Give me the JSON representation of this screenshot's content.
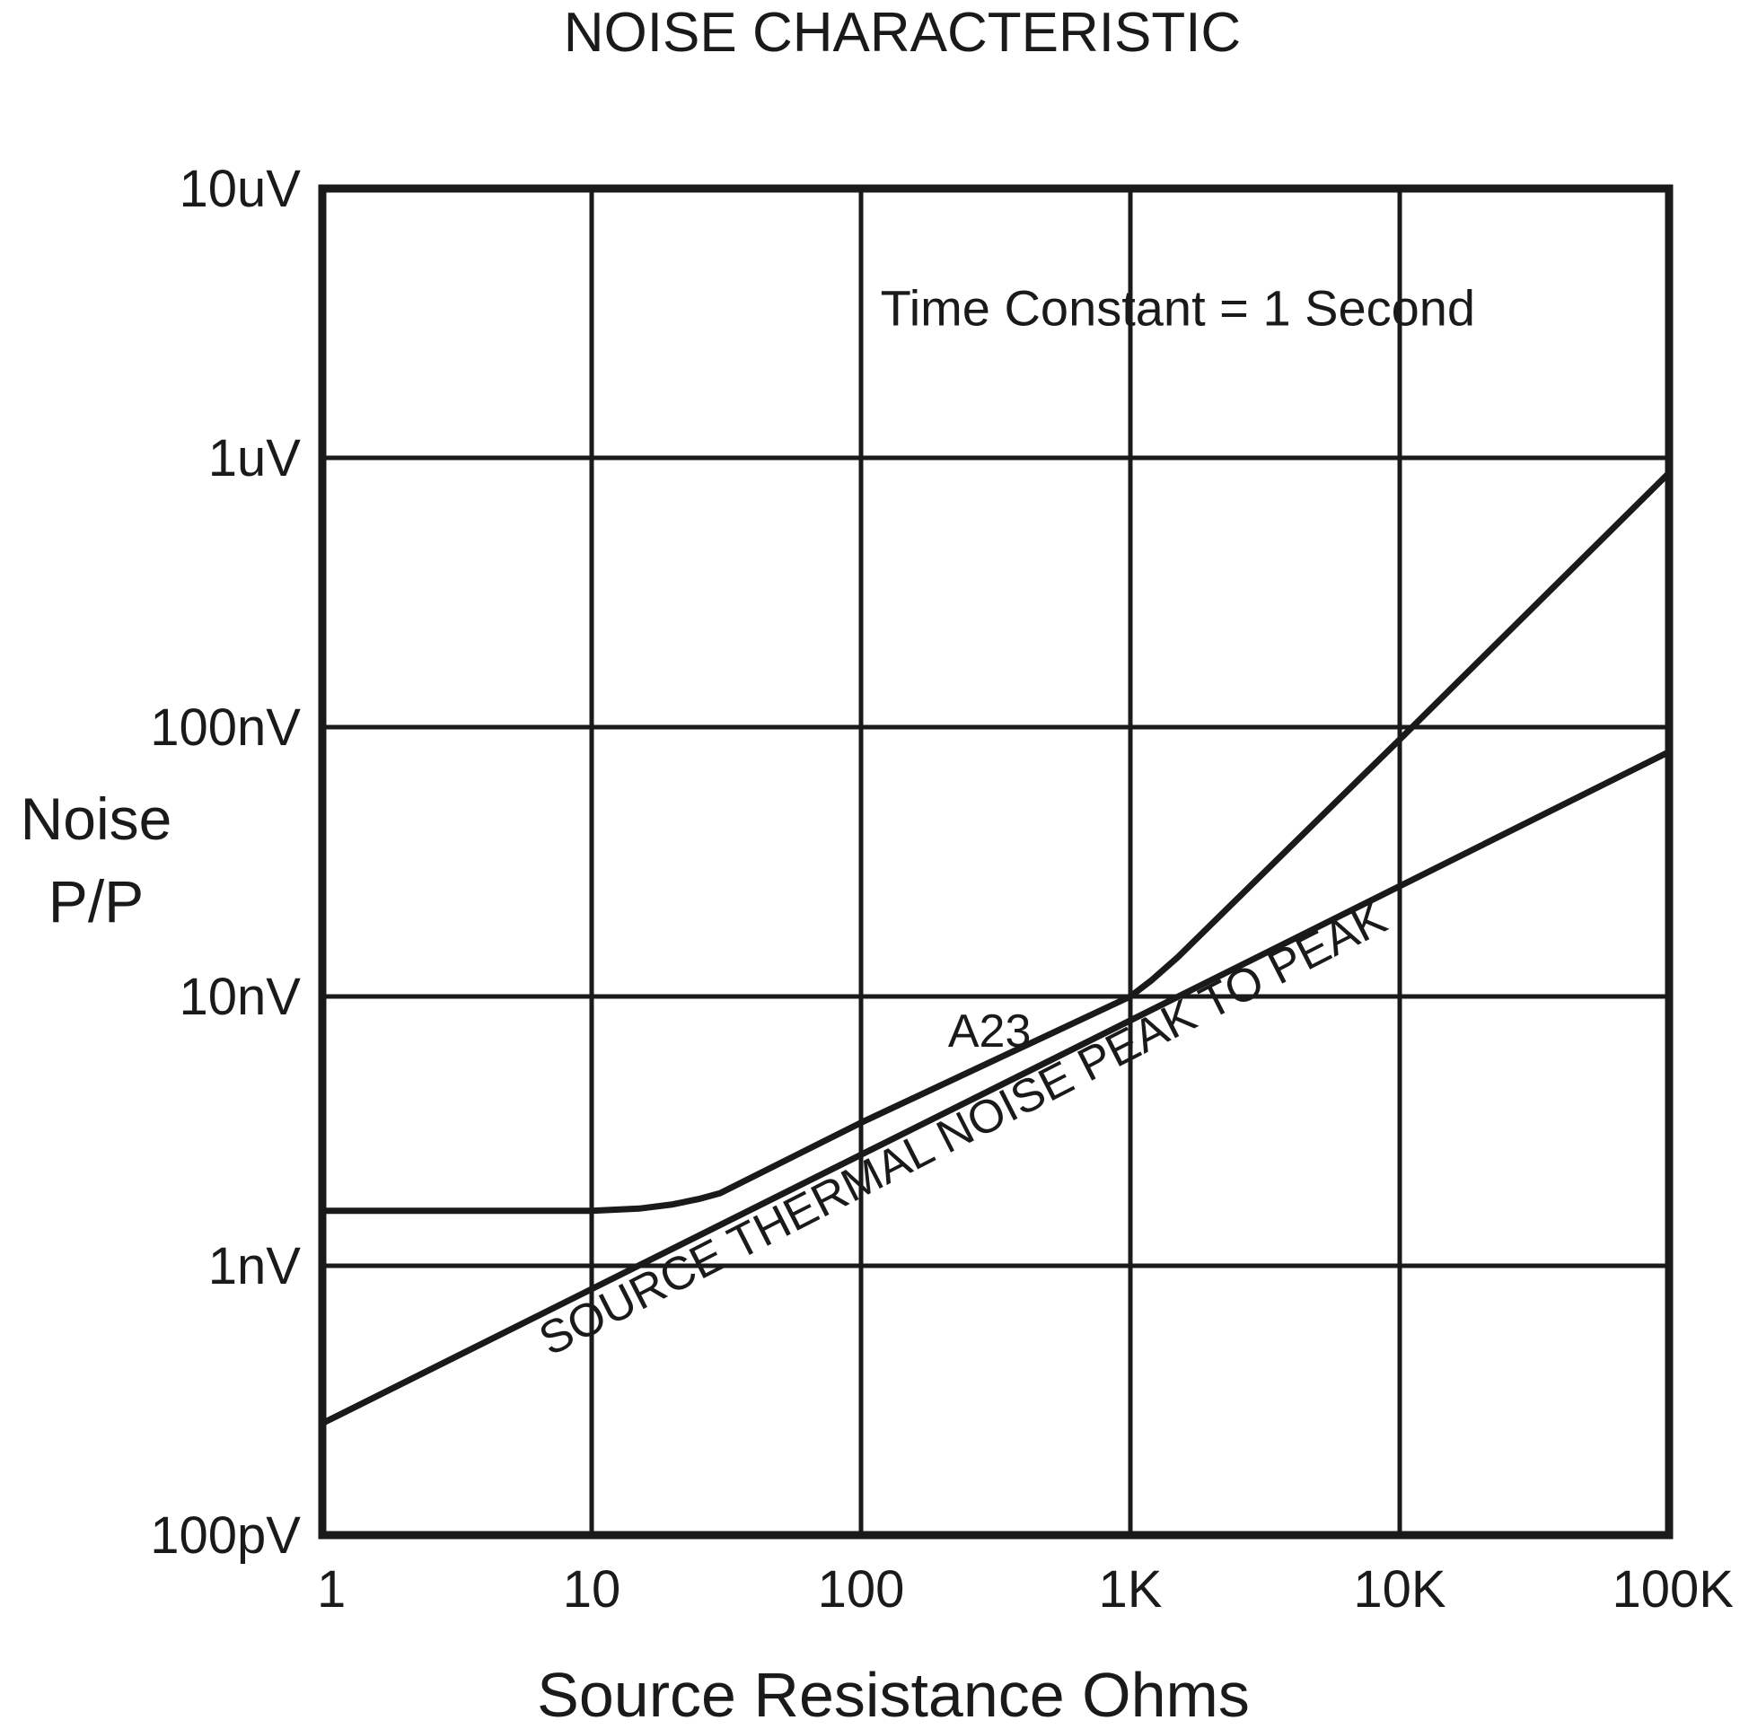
{
  "chart_data": {
    "type": "line",
    "title": "NOISE CHARACTERISTIC",
    "xlabel": "Source Resistance  Ohms",
    "ylabel": [
      "Noise",
      "P/P"
    ],
    "x_scale": "log",
    "y_scale": "log",
    "xlim": [
      1,
      100000
    ],
    "ylim": [
      1e-10,
      1e-05
    ],
    "grid": true,
    "x_ticks": [
      {
        "value": 1,
        "label": "1"
      },
      {
        "value": 10,
        "label": "10"
      },
      {
        "value": 100,
        "label": "100"
      },
      {
        "value": 1000,
        "label": "1K"
      },
      {
        "value": 10000,
        "label": "10K"
      },
      {
        "value": 100000,
        "label": "100K"
      }
    ],
    "y_ticks": [
      {
        "value": 1e-10,
        "label": "100pV"
      },
      {
        "value": 1e-09,
        "label": "1nV"
      },
      {
        "value": 1e-08,
        "label": "10nV"
      },
      {
        "value": 1e-07,
        "label": "100nV"
      },
      {
        "value": 1e-06,
        "label": "1uV"
      },
      {
        "value": 1e-05,
        "label": "10uV"
      }
    ],
    "annotations": [
      {
        "text": "Time Constant = 1 Second",
        "x": 1500,
        "y": 3.1e-06,
        "angle": 0,
        "align": "middle"
      },
      {
        "text": "A23",
        "x": 300,
        "y": 6.5e-09,
        "angle": 0,
        "align": "middle"
      },
      {
        "text": "SOURCE THERMAL NOISE   PEAK TO PEAK",
        "x": 7,
        "y": 4.6e-10,
        "angle": -27,
        "align": "start"
      }
    ],
    "series": [
      {
        "name": "A23",
        "x": [
          1,
          10,
          15,
          20,
          25,
          30,
          100,
          1000,
          1200,
          1500,
          10000,
          100000
        ],
        "y": [
          1.6e-09,
          1.6e-09,
          1.63e-09,
          1.69e-09,
          1.77e-09,
          1.86e-09,
          3.4e-09,
          1e-08,
          1.15e-08,
          1.4e-08,
          9e-08,
          8.8e-07
        ]
      },
      {
        "name": "SOURCE THERMAL NOISE   PEAK TO PEAK",
        "x": [
          1,
          100000
        ],
        "y": [
          2.6e-10,
          8.1e-08
        ]
      }
    ]
  }
}
